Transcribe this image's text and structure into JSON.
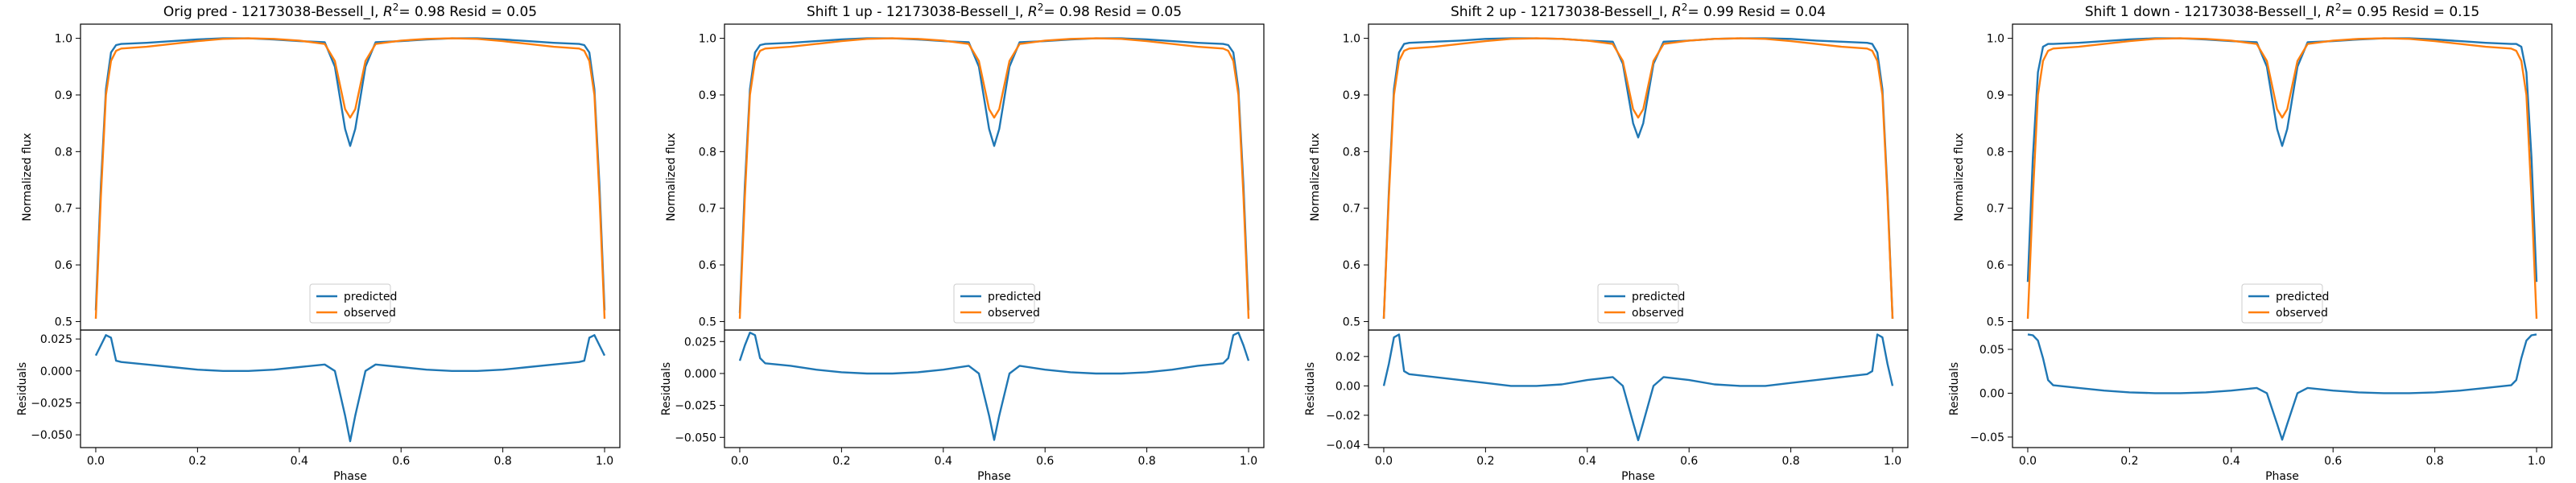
{
  "colors": {
    "predicted": "#1f77b4",
    "observed": "#ff7f0e",
    "axes": "#000000"
  },
  "chart_data": [
    {
      "type": "line",
      "title_prefix": "Orig pred - 12173038-Bessell_I, ",
      "title_r2": "= 0.98 Resid = 0.05",
      "main": {
        "ylabel": "Normalized flux",
        "ylim": [
          0.485,
          1.025
        ],
        "yticks": [
          0.5,
          0.6,
          0.7,
          0.8,
          0.9,
          1.0
        ],
        "ytick_labels": [
          "0.5",
          "0.6",
          "0.7",
          "0.8",
          "0.9",
          "1.0"
        ],
        "legend": {
          "placement": "lower center",
          "entries": [
            "predicted",
            "observed"
          ]
        },
        "x": [
          0,
          0.01,
          0.02,
          0.03,
          0.04,
          0.05,
          0.1,
          0.15,
          0.2,
          0.25,
          0.3,
          0.35,
          0.4,
          0.45,
          0.47,
          0.49,
          0.5,
          0.51,
          0.53,
          0.55,
          0.6,
          0.65,
          0.7,
          0.75,
          0.8,
          0.85,
          0.9,
          0.95,
          0.96,
          0.97,
          0.98,
          0.99,
          1.0
        ],
        "series": [
          {
            "name": "predicted",
            "values": [
              0.52,
              0.74,
              0.91,
              0.975,
              0.988,
              0.99,
              0.992,
              0.995,
              0.998,
              1.0,
              1.0,
              0.998,
              0.995,
              0.993,
              0.95,
              0.84,
              0.81,
              0.84,
              0.95,
              0.993,
              0.995,
              0.998,
              1.0,
              1.0,
              0.998,
              0.995,
              0.992,
              0.99,
              0.988,
              0.975,
              0.91,
              0.74,
              0.52
            ]
          },
          {
            "name": "observed",
            "values": [
              0.505,
              0.72,
              0.9,
              0.96,
              0.978,
              0.982,
              0.985,
              0.99,
              0.995,
              0.999,
              1.0,
              0.999,
              0.996,
              0.99,
              0.96,
              0.875,
              0.86,
              0.875,
              0.96,
              0.99,
              0.996,
              0.999,
              1.0,
              0.999,
              0.995,
              0.99,
              0.985,
              0.982,
              0.978,
              0.96,
              0.9,
              0.72,
              0.505
            ]
          }
        ]
      },
      "residuals": {
        "ylabel": "Residuals",
        "ylim": [
          -0.06,
          0.032
        ],
        "yticks": [
          -0.05,
          -0.025,
          0.0,
          0.025
        ],
        "ytick_labels": [
          "−0.050",
          "−0.025",
          "0.000",
          "0.025"
        ],
        "x": [
          0,
          0.01,
          0.02,
          0.03,
          0.04,
          0.05,
          0.1,
          0.15,
          0.2,
          0.25,
          0.3,
          0.35,
          0.4,
          0.45,
          0.47,
          0.49,
          0.5,
          0.51,
          0.53,
          0.55,
          0.6,
          0.65,
          0.7,
          0.75,
          0.8,
          0.85,
          0.9,
          0.95,
          0.96,
          0.97,
          0.98,
          0.99,
          1.0
        ],
        "values": [
          0.012,
          0.02,
          0.028,
          0.026,
          0.008,
          0.007,
          0.005,
          0.003,
          0.001,
          0.0,
          0.0,
          0.001,
          0.003,
          0.005,
          0.0,
          -0.035,
          -0.055,
          -0.035,
          0.0,
          0.005,
          0.003,
          0.001,
          0.0,
          0.0,
          0.001,
          0.003,
          0.005,
          0.007,
          0.008,
          0.026,
          0.028,
          0.02,
          0.012
        ]
      },
      "xlabel": "Phase",
      "xlim": [
        -0.03,
        1.03
      ],
      "xticks": [
        0.0,
        0.2,
        0.4,
        0.6,
        0.8,
        1.0
      ],
      "xtick_labels": [
        "0.0",
        "0.2",
        "0.4",
        "0.6",
        "0.8",
        "1.0"
      ]
    },
    {
      "type": "line",
      "title_prefix": "Shift 1 up - 12173038-Bessell_I, ",
      "title_r2": "= 0.98 Resid = 0.05",
      "main": {
        "ylabel": "Normalized flux",
        "ylim": [
          0.485,
          1.025
        ],
        "yticks": [
          0.5,
          0.6,
          0.7,
          0.8,
          0.9,
          1.0
        ],
        "ytick_labels": [
          "0.5",
          "0.6",
          "0.7",
          "0.8",
          "0.9",
          "1.0"
        ],
        "legend": {
          "placement": "lower center",
          "entries": [
            "predicted",
            "observed"
          ]
        },
        "x": [
          0,
          0.01,
          0.02,
          0.03,
          0.04,
          0.05,
          0.1,
          0.15,
          0.2,
          0.25,
          0.3,
          0.35,
          0.4,
          0.45,
          0.47,
          0.49,
          0.5,
          0.51,
          0.53,
          0.55,
          0.6,
          0.65,
          0.7,
          0.75,
          0.8,
          0.85,
          0.9,
          0.95,
          0.96,
          0.97,
          0.98,
          0.99,
          1.0
        ],
        "series": [
          {
            "name": "predicted",
            "values": [
              0.515,
              0.74,
              0.91,
              0.975,
              0.988,
              0.99,
              0.992,
              0.995,
              0.998,
              1.0,
              1.0,
              0.998,
              0.995,
              0.993,
              0.95,
              0.84,
              0.81,
              0.84,
              0.95,
              0.993,
              0.995,
              0.998,
              1.0,
              1.0,
              0.998,
              0.995,
              0.992,
              0.99,
              0.988,
              0.975,
              0.91,
              0.74,
              0.52
            ]
          },
          {
            "name": "observed",
            "values": [
              0.505,
              0.72,
              0.9,
              0.96,
              0.978,
              0.982,
              0.985,
              0.99,
              0.995,
              0.999,
              1.0,
              0.999,
              0.996,
              0.99,
              0.96,
              0.875,
              0.86,
              0.875,
              0.96,
              0.99,
              0.996,
              0.999,
              1.0,
              0.999,
              0.995,
              0.99,
              0.985,
              0.982,
              0.978,
              0.96,
              0.9,
              0.72,
              0.505
            ]
          }
        ]
      },
      "residuals": {
        "ylabel": "Residuals",
        "ylim": [
          -0.058,
          0.034
        ],
        "yticks": [
          -0.05,
          -0.025,
          0.0,
          0.025
        ],
        "ytick_labels": [
          "−0.050",
          "−0.025",
          "0.000",
          "0.025"
        ],
        "x": [
          0,
          0.01,
          0.02,
          0.03,
          0.04,
          0.05,
          0.1,
          0.15,
          0.2,
          0.25,
          0.3,
          0.35,
          0.4,
          0.45,
          0.47,
          0.49,
          0.5,
          0.51,
          0.53,
          0.55,
          0.6,
          0.65,
          0.7,
          0.75,
          0.8,
          0.85,
          0.9,
          0.95,
          0.96,
          0.97,
          0.98,
          0.99,
          1.0
        ],
        "values": [
          0.01,
          0.022,
          0.032,
          0.03,
          0.012,
          0.008,
          0.006,
          0.003,
          0.001,
          0.0,
          0.0,
          0.001,
          0.003,
          0.006,
          0.0,
          -0.033,
          -0.052,
          -0.033,
          0.0,
          0.006,
          0.003,
          0.001,
          0.0,
          0.0,
          0.001,
          0.003,
          0.006,
          0.008,
          0.012,
          0.03,
          0.032,
          0.022,
          0.01
        ]
      },
      "xlabel": "Phase",
      "xlim": [
        -0.03,
        1.03
      ],
      "xticks": [
        0.0,
        0.2,
        0.4,
        0.6,
        0.8,
        1.0
      ],
      "xtick_labels": [
        "0.0",
        "0.2",
        "0.4",
        "0.6",
        "0.8",
        "1.0"
      ]
    },
    {
      "type": "line",
      "title_prefix": "Shift 2 up - 12173038-Bessell_I, ",
      "title_r2": "= 0.99 Resid = 0.04",
      "main": {
        "ylabel": "Normalized flux",
        "ylim": [
          0.485,
          1.025
        ],
        "yticks": [
          0.5,
          0.6,
          0.7,
          0.8,
          0.9,
          1.0
        ],
        "ytick_labels": [
          "0.5",
          "0.6",
          "0.7",
          "0.8",
          "0.9",
          "1.0"
        ],
        "legend": {
          "placement": "lower center",
          "entries": [
            "predicted",
            "observed"
          ]
        },
        "x": [
          0,
          0.01,
          0.02,
          0.03,
          0.04,
          0.05,
          0.1,
          0.15,
          0.2,
          0.25,
          0.3,
          0.35,
          0.4,
          0.45,
          0.47,
          0.49,
          0.5,
          0.51,
          0.53,
          0.55,
          0.6,
          0.65,
          0.7,
          0.75,
          0.8,
          0.85,
          0.9,
          0.95,
          0.96,
          0.97,
          0.98,
          0.99,
          1.0
        ],
        "series": [
          {
            "name": "predicted",
            "values": [
              0.505,
              0.73,
              0.91,
              0.975,
              0.99,
              0.992,
              0.994,
              0.996,
              0.999,
              1.0,
              1.0,
              0.999,
              0.996,
              0.994,
              0.955,
              0.85,
              0.825,
              0.85,
              0.955,
              0.994,
              0.996,
              0.999,
              1.0,
              1.0,
              0.999,
              0.996,
              0.994,
              0.992,
              0.99,
              0.975,
              0.91,
              0.73,
              0.505
            ]
          },
          {
            "name": "observed",
            "values": [
              0.505,
              0.72,
              0.9,
              0.96,
              0.978,
              0.982,
              0.985,
              0.99,
              0.995,
              0.999,
              1.0,
              0.999,
              0.996,
              0.99,
              0.96,
              0.875,
              0.86,
              0.875,
              0.96,
              0.99,
              0.996,
              0.999,
              1.0,
              0.999,
              0.995,
              0.99,
              0.985,
              0.982,
              0.978,
              0.96,
              0.9,
              0.72,
              0.505
            ]
          }
        ]
      },
      "residuals": {
        "ylabel": "Residuals",
        "ylim": [
          -0.042,
          0.038
        ],
        "yticks": [
          -0.04,
          -0.02,
          0.0,
          0.02
        ],
        "ytick_labels": [
          "−0.04",
          "−0.02",
          "0.00",
          "0.02"
        ],
        "x": [
          0,
          0.01,
          0.02,
          0.03,
          0.04,
          0.05,
          0.1,
          0.15,
          0.2,
          0.25,
          0.3,
          0.35,
          0.4,
          0.45,
          0.47,
          0.49,
          0.5,
          0.51,
          0.53,
          0.55,
          0.6,
          0.65,
          0.7,
          0.75,
          0.8,
          0.85,
          0.9,
          0.95,
          0.96,
          0.97,
          0.98,
          0.99,
          1.0
        ],
        "values": [
          0.0,
          0.015,
          0.033,
          0.035,
          0.01,
          0.008,
          0.006,
          0.004,
          0.002,
          0.0,
          0.0,
          0.001,
          0.004,
          0.006,
          0.0,
          -0.025,
          -0.037,
          -0.025,
          0.0,
          0.006,
          0.004,
          0.001,
          0.0,
          0.0,
          0.002,
          0.004,
          0.006,
          0.008,
          0.01,
          0.035,
          0.033,
          0.015,
          0.0
        ]
      },
      "xlabel": "Phase",
      "xlim": [
        -0.03,
        1.03
      ],
      "xticks": [
        0.0,
        0.2,
        0.4,
        0.6,
        0.8,
        1.0
      ],
      "xtick_labels": [
        "0.0",
        "0.2",
        "0.4",
        "0.6",
        "0.8",
        "1.0"
      ]
    },
    {
      "type": "line",
      "title_prefix": "Shift 1 down - 12173038-Bessell_I, ",
      "title_r2": "= 0.95 Resid = 0.15",
      "main": {
        "ylabel": "Normalized flux",
        "ylim": [
          0.485,
          1.025
        ],
        "yticks": [
          0.5,
          0.6,
          0.7,
          0.8,
          0.9,
          1.0
        ],
        "ytick_labels": [
          "0.5",
          "0.6",
          "0.7",
          "0.8",
          "0.9",
          "1.0"
        ],
        "legend": {
          "placement": "lower center",
          "entries": [
            "predicted",
            "observed"
          ]
        },
        "x": [
          0,
          0.01,
          0.02,
          0.03,
          0.04,
          0.05,
          0.1,
          0.15,
          0.2,
          0.25,
          0.3,
          0.35,
          0.4,
          0.45,
          0.47,
          0.49,
          0.5,
          0.51,
          0.53,
          0.55,
          0.6,
          0.65,
          0.7,
          0.75,
          0.8,
          0.85,
          0.9,
          0.95,
          0.96,
          0.97,
          0.98,
          0.99,
          1.0
        ],
        "series": [
          {
            "name": "predicted",
            "values": [
              0.57,
              0.79,
              0.94,
              0.985,
              0.99,
              0.99,
              0.992,
              0.995,
              0.998,
              1.0,
              1.0,
              0.998,
              0.995,
              0.993,
              0.95,
              0.84,
              0.81,
              0.84,
              0.95,
              0.993,
              0.995,
              0.998,
              1.0,
              1.0,
              0.998,
              0.995,
              0.992,
              0.99,
              0.99,
              0.985,
              0.94,
              0.79,
              0.57
            ]
          },
          {
            "name": "observed",
            "values": [
              0.505,
              0.72,
              0.9,
              0.96,
              0.978,
              0.982,
              0.985,
              0.99,
              0.995,
              0.999,
              1.0,
              0.999,
              0.996,
              0.99,
              0.96,
              0.875,
              0.86,
              0.875,
              0.96,
              0.99,
              0.996,
              0.999,
              1.0,
              0.999,
              0.995,
              0.99,
              0.985,
              0.982,
              0.978,
              0.96,
              0.9,
              0.72,
              0.505
            ]
          }
        ]
      },
      "residuals": {
        "ylabel": "Residuals",
        "ylim": [
          -0.062,
          0.072
        ],
        "yticks": [
          -0.05,
          0.0,
          0.05
        ],
        "ytick_labels": [
          "−0.05",
          "0.00",
          "0.05"
        ],
        "x": [
          0,
          0.01,
          0.02,
          0.03,
          0.04,
          0.05,
          0.1,
          0.15,
          0.2,
          0.25,
          0.3,
          0.35,
          0.4,
          0.45,
          0.47,
          0.49,
          0.5,
          0.51,
          0.53,
          0.55,
          0.6,
          0.65,
          0.7,
          0.75,
          0.8,
          0.85,
          0.9,
          0.95,
          0.96,
          0.97,
          0.98,
          0.99,
          1.0
        ],
        "values": [
          0.067,
          0.066,
          0.06,
          0.04,
          0.015,
          0.009,
          0.006,
          0.003,
          0.001,
          0.0,
          0.0,
          0.001,
          0.003,
          0.006,
          0.0,
          -0.035,
          -0.053,
          -0.035,
          0.0,
          0.006,
          0.003,
          0.001,
          0.0,
          0.0,
          0.001,
          0.003,
          0.006,
          0.009,
          0.015,
          0.04,
          0.06,
          0.066,
          0.067
        ]
      },
      "xlabel": "Phase",
      "xlim": [
        -0.03,
        1.03
      ],
      "xticks": [
        0.0,
        0.2,
        0.4,
        0.6,
        0.8,
        1.0
      ],
      "xtick_labels": [
        "0.0",
        "0.2",
        "0.4",
        "0.6",
        "0.8",
        "1.0"
      ]
    }
  ]
}
